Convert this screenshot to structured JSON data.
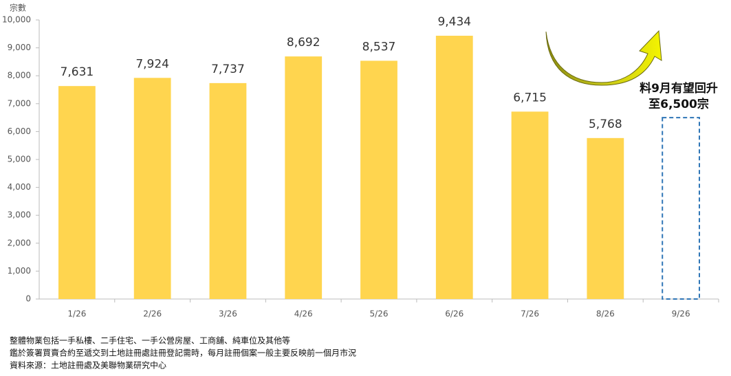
{
  "chart_data": {
    "type": "bar",
    "y_axis_label": "宗數",
    "categories": [
      "1/26",
      "2/26",
      "3/26",
      "4/26",
      "5/26",
      "6/26",
      "7/26",
      "8/26",
      "9/26"
    ],
    "values": [
      7631,
      7924,
      7737,
      8692,
      8537,
      9434,
      6715,
      5768,
      null
    ],
    "value_labels": [
      "7,631",
      "7,924",
      "7,737",
      "8,692",
      "8,537",
      "9,434",
      "6,715",
      "5,768",
      null
    ],
    "color": "#ffd54f",
    "forecast": {
      "value": 6500,
      "color": "#2e75b6",
      "style": "dashed"
    },
    "annotation": [
      "料9月有望回升",
      "至6,500宗"
    ],
    "ylim": [
      0,
      10000
    ],
    "yticks": [
      0,
      {
        "value": 1000,
        "label": "1,000"
      },
      {
        "value": 2000,
        "label": "2,000"
      },
      {
        "value": 3000,
        "label": "3,000"
      },
      {
        "value": 4000,
        "label": "4,000"
      },
      {
        "value": 5000,
        "label": "5,000"
      },
      {
        "value": 6000,
        "label": "6,000"
      },
      {
        "value": 7000,
        "label": "7,000"
      },
      {
        "value": 8000,
        "label": "8,000"
      },
      {
        "value": 9000,
        "label": "9,000"
      },
      {
        "value": 10000,
        "label": "10,000"
      }
    ],
    "grid": false
  },
  "notes": [
    "整體物業包括一手私樓、二手住宅、一手公營房屋、工商舖、純車位及其他等",
    "鑑於簽署買賣合約至遞交到土地註冊處註冊登記需時，每月註冊個案一般主要反映前一個月市況",
    "資料來源：土地註冊處及美聯物業研究中心"
  ]
}
